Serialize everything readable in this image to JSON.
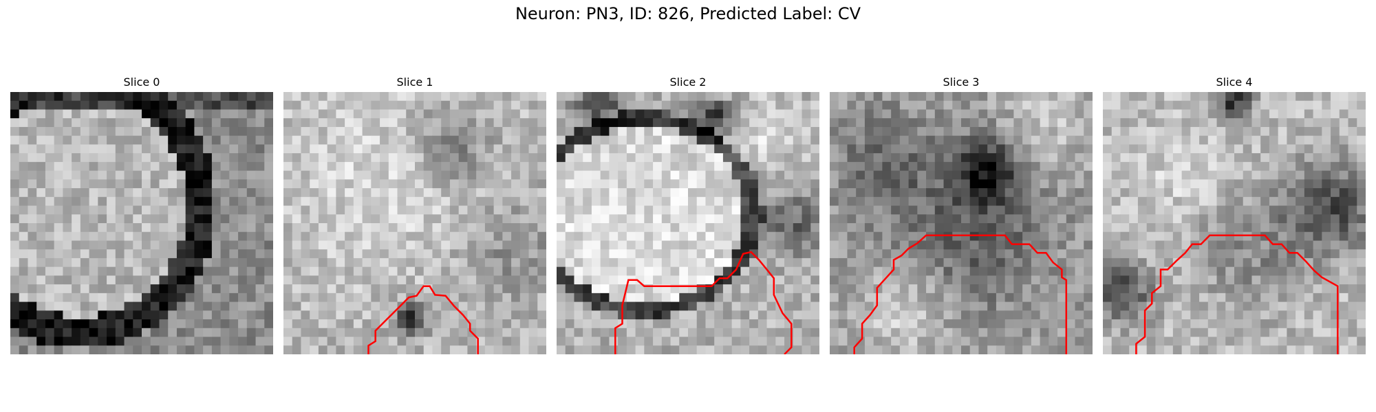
{
  "figure": {
    "title": "Neuron: PN3, ID: 826, Predicted Label: CV"
  },
  "colors": {
    "contour": "#ff0000",
    "background": "#ffffff"
  },
  "panels": [
    {
      "title": "Slice 0",
      "pattern": "ring"
    },
    {
      "title": "Slice 1",
      "pattern": "bright_soft"
    },
    {
      "title": "Slice 2",
      "pattern": "bright_blob_edge"
    },
    {
      "title": "Slice 3",
      "pattern": "dark_center"
    },
    {
      "title": "Slice 4",
      "pattern": "dark_sides"
    }
  ]
}
